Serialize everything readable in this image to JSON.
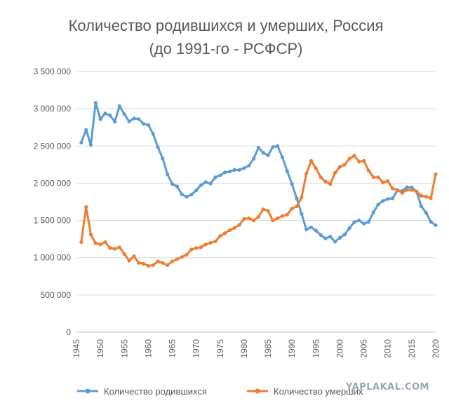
{
  "watermark": "YAPLAKAL.COM",
  "chart_data": {
    "type": "line",
    "title": "Количество родившихся и умерших, Россия",
    "subtitle": "(до 1991-го - РСФСР)",
    "xlabel": "",
    "ylabel": "",
    "xlim": [
      1945,
      2020
    ],
    "ylim": [
      0,
      3500000
    ],
    "grid": "horizontal",
    "legend_position": "bottom",
    "x_ticks": [
      1945,
      1950,
      1955,
      1960,
      1965,
      1970,
      1975,
      1980,
      1985,
      1990,
      1995,
      2000,
      2005,
      2010,
      2015,
      2020
    ],
    "x_tick_labels": [
      "1945",
      "1950",
      "1955",
      "1960",
      "1965",
      "1970",
      "1975",
      "1980",
      "1985",
      "1990",
      "1995",
      "2000",
      "2005",
      "2010",
      "2015",
      "2020"
    ],
    "y_ticks": [
      0,
      500000,
      1000000,
      1500000,
      2000000,
      2500000,
      3000000,
      3500000
    ],
    "y_tick_labels": [
      "0",
      "500 000",
      "1 000 000",
      "1 500 000",
      "2 000 000",
      "2 500 000",
      "3 000 000",
      "3 500 000"
    ],
    "x": [
      1946,
      1947,
      1948,
      1949,
      1950,
      1951,
      1952,
      1953,
      1954,
      1955,
      1956,
      1957,
      1958,
      1959,
      1960,
      1961,
      1962,
      1963,
      1964,
      1965,
      1966,
      1967,
      1968,
      1969,
      1970,
      1971,
      1972,
      1973,
      1974,
      1975,
      1976,
      1977,
      1978,
      1979,
      1980,
      1981,
      1982,
      1983,
      1984,
      1985,
      1986,
      1987,
      1988,
      1989,
      1990,
      1991,
      1992,
      1993,
      1994,
      1995,
      1996,
      1997,
      1998,
      1999,
      2000,
      2001,
      2002,
      2003,
      2004,
      2005,
      2006,
      2007,
      2008,
      2009,
      2010,
      2011,
      2012,
      2013,
      2014,
      2015,
      2016,
      2017,
      2018,
      2019,
      2020
    ],
    "series": [
      {
        "name": "Количество родившихся",
        "color": "#5b9bd5",
        "values": [
          2546000,
          2715000,
          2513000,
          3080000,
          2859000,
          2938000,
          2910000,
          2826000,
          3035000,
          2928000,
          2829000,
          2870000,
          2862000,
          2796000,
          2782000,
          2662000,
          2482000,
          2331000,
          2121000,
          1990000,
          1957000,
          1851000,
          1817000,
          1847000,
          1904000,
          1974000,
          2014000,
          1995000,
          2080000,
          2106000,
          2146000,
          2156000,
          2179000,
          2178000,
          2203000,
          2236000,
          2329000,
          2478000,
          2410000,
          2375000,
          2486000,
          2500000,
          2348000,
          2160000,
          1989000,
          1795000,
          1588000,
          1379000,
          1408000,
          1364000,
          1304000,
          1260000,
          1283000,
          1215000,
          1267000,
          1312000,
          1397000,
          1477000,
          1502000,
          1457000,
          1480000,
          1610000,
          1714000,
          1762000,
          1789000,
          1797000,
          1902000,
          1896000,
          1947000,
          1944000,
          1889000,
          1690000,
          1604000,
          1481000,
          1436000
        ]
      },
      {
        "name": "Количество умерших",
        "color": "#ed7d31",
        "values": [
          1210000,
          1680000,
          1310000,
          1195000,
          1180000,
          1210000,
          1130000,
          1120000,
          1140000,
          1050000,
          960000,
          1020000,
          930000,
          920000,
          890000,
          900000,
          950000,
          930000,
          900000,
          950000,
          980000,
          1010000,
          1040000,
          1110000,
          1130000,
          1140000,
          1180000,
          1200000,
          1220000,
          1290000,
          1330000,
          1370000,
          1400000,
          1440000,
          1520000,
          1530000,
          1500000,
          1550000,
          1650000,
          1630000,
          1500000,
          1530000,
          1560000,
          1580000,
          1660000,
          1690000,
          1810000,
          2130000,
          2300000,
          2200000,
          2080000,
          2020000,
          1990000,
          2140000,
          2220000,
          2250000,
          2330000,
          2370000,
          2290000,
          2300000,
          2170000,
          2080000,
          2080000,
          2010000,
          2030000,
          1930000,
          1910000,
          1870000,
          1910000,
          1910000,
          1890000,
          1830000,
          1820000,
          1800000,
          2120000
        ]
      }
    ]
  }
}
